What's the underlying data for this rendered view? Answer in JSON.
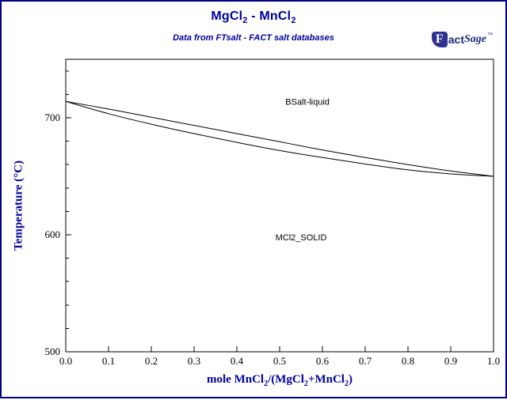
{
  "page": {
    "background_color": "#ffffff",
    "border_color": "#000080"
  },
  "header": {
    "title_parts": {
      "p1": "MgCl",
      "s1": "2",
      "p2": " - MnCl",
      "s2": "2"
    },
    "subtitle": "Data from FTsalt - FACT salt databases",
    "title_color": "#0000A0"
  },
  "logo": {
    "f": "F",
    "act": "act",
    "sage": "Sage",
    "tm": "™"
  },
  "chart_data": {
    "type": "line",
    "title": "MgCl2 - MnCl2",
    "subtitle": "Data from FTsalt - FACT salt databases",
    "xlabel": "mole MnCl2/(MgCl2+MnCl2)",
    "xlabel_parts": {
      "p1": "mole MnCl",
      "s1": "2",
      "p2": "/(MgCl",
      "s2": "2",
      "p3": "+MnCl",
      "s3": "2",
      "p4": ")"
    },
    "ylabel": "Temperature (°C)",
    "xlim": [
      0.0,
      1.0
    ],
    "ylim": [
      500,
      750
    ],
    "x_ticks": [
      0.0,
      0.1,
      0.2,
      0.3,
      0.4,
      0.5,
      0.6,
      0.7,
      0.8,
      0.9,
      1.0
    ],
    "y_ticks": [
      500,
      600,
      700
    ],
    "y_minor_step": 20,
    "grid": false,
    "legend": "none",
    "line_color": "#000000",
    "x": [
      0.0,
      0.1,
      0.2,
      0.3,
      0.4,
      0.5,
      0.6,
      0.7,
      0.8,
      0.9,
      1.0
    ],
    "series": [
      {
        "name": "liquidus (BSalt-liquid boundary)",
        "values": [
          714,
          707.5,
          700.5,
          693.5,
          686.5,
          679.5,
          672.5,
          666,
          660,
          654.5,
          650
        ]
      },
      {
        "name": "solidus (MCl2_SOLID boundary)",
        "values": [
          714,
          703.5,
          694.5,
          686.5,
          679,
          672,
          666,
          660.5,
          655.5,
          652,
          650
        ]
      }
    ],
    "annotations": [
      {
        "text": "BSalt-liquid",
        "x": 0.565,
        "T": 714
      },
      {
        "text": "MCl2_SOLID",
        "x": 0.55,
        "T": 598
      }
    ]
  }
}
